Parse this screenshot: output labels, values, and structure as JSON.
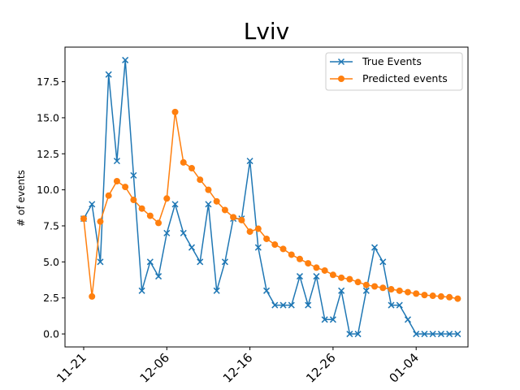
{
  "chart_data": {
    "type": "line",
    "title": "Lviv",
    "xlabel": "",
    "ylabel": "# of events",
    "x_tick_labels": [
      "11-21",
      "12-06",
      "12-16",
      "12-26",
      "01-04"
    ],
    "x_tick_index": [
      0,
      10,
      20,
      30,
      40
    ],
    "ylim": [
      -0.9,
      19.9
    ],
    "y_ticks": [
      0.0,
      2.5,
      5.0,
      7.5,
      10.0,
      12.5,
      15.0,
      17.5
    ],
    "y_tick_labels": [
      "0.0",
      "2.5",
      "5.0",
      "7.5",
      "10.0",
      "12.5",
      "15.0",
      "17.5"
    ],
    "grid": false,
    "legend_position": "top-right",
    "series": [
      {
        "name": "True Events",
        "color": "#1f77b4",
        "marker": "x",
        "values": [
          8,
          9,
          5,
          18,
          12,
          19,
          11,
          3,
          5,
          4,
          7,
          9,
          7,
          6,
          5,
          9,
          3,
          5,
          8,
          8,
          12,
          6,
          3,
          2,
          2,
          2,
          4,
          2,
          4,
          1,
          1,
          3,
          0,
          0,
          3,
          6,
          5,
          2,
          2,
          1,
          0,
          0,
          0,
          0,
          0,
          0
        ]
      },
      {
        "name": "Predicted events",
        "color": "#ff7f0e",
        "marker": "circle",
        "values": [
          8.0,
          2.6,
          7.8,
          9.6,
          10.6,
          10.2,
          9.3,
          8.7,
          8.2,
          7.7,
          9.4,
          15.4,
          11.9,
          11.5,
          10.7,
          10.0,
          9.2,
          8.6,
          8.1,
          7.9,
          7.1,
          7.3,
          6.6,
          6.2,
          5.9,
          5.5,
          5.2,
          4.9,
          4.6,
          4.4,
          4.1,
          3.9,
          3.8,
          3.6,
          3.4,
          3.3,
          3.2,
          3.1,
          3.0,
          2.9,
          2.8,
          2.7,
          2.65,
          2.6,
          2.55,
          2.45
        ]
      }
    ]
  }
}
